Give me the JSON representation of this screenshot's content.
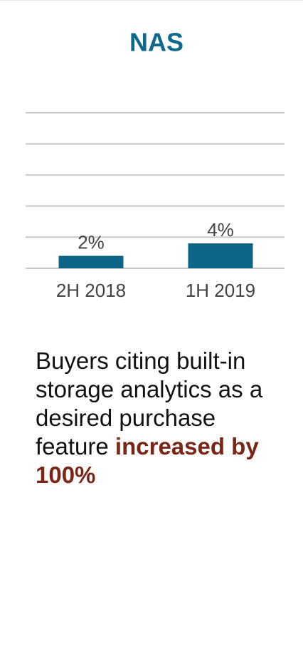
{
  "chart_data": {
    "type": "bar",
    "title": "NAS",
    "categories": [
      "2H 2018",
      "1H 2019"
    ],
    "values": [
      2,
      4
    ],
    "value_labels": [
      "2%",
      "4%"
    ],
    "color": "#0e6586",
    "title_color": "#0e6a8c",
    "ylim": [
      0,
      25
    ],
    "yticks": [
      0,
      5,
      10,
      15,
      20,
      25
    ],
    "grid": true,
    "note": "Buyers citing built-in storage analytics as a desired purchase feature",
    "note_highlight": "increased by 100%"
  }
}
